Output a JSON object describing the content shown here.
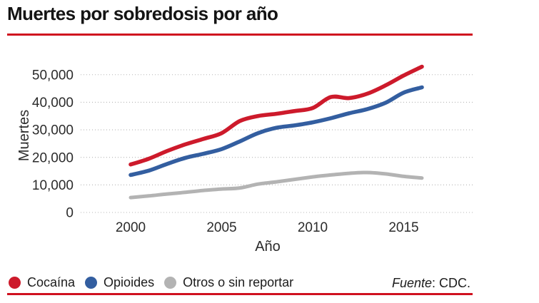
{
  "header": {
    "title": "Muertes por sobredosis por año"
  },
  "footer": {
    "source_prefix": "Fuente",
    "source_suffix": ": CDC."
  },
  "colors": {
    "accent_rule": "#d0111f",
    "cocaina": "#cd1a2b",
    "opioides": "#335ea0",
    "otros": "#b3b3b3",
    "gridline": "#b5b5b5",
    "text": "#2b2b2b"
  },
  "legend": [
    {
      "label": "Cocaína",
      "color": "#cd1a2b"
    },
    {
      "label": "Opioides",
      "color": "#335ea0"
    },
    {
      "label": "Otros o sin reportar",
      "color": "#b3b3b3"
    }
  ],
  "chart_data": {
    "type": "line",
    "title": "Muertes por sobredosis por año",
    "xlabel": "Año",
    "ylabel": "Muertes",
    "grid": "horizontal-dotted",
    "legend_position": "bottom-left",
    "x": [
      2000,
      2001,
      2002,
      2003,
      2004,
      2005,
      2006,
      2007,
      2008,
      2009,
      2010,
      2011,
      2012,
      2013,
      2014,
      2015,
      2016
    ],
    "xticks": [
      2000,
      2005,
      2010,
      2015
    ],
    "xticklabels": [
      "2000",
      "2005",
      "2010",
      "2015"
    ],
    "yticks": [
      0,
      10000,
      20000,
      30000,
      40000,
      50000
    ],
    "yticklabels": [
      "0",
      "10,000",
      "20,000",
      "30,000",
      "40,000",
      "50,000"
    ],
    "ylim": [
      0,
      55000
    ],
    "series": [
      {
        "name": "Cocaína",
        "color": "#cd1a2b",
        "values": [
          17400,
          19500,
          22300,
          24700,
          26700,
          28800,
          33200,
          35000,
          35800,
          36800,
          37900,
          41900,
          41500,
          43100,
          46100,
          49700,
          52900
        ]
      },
      {
        "name": "Opioides",
        "color": "#335ea0",
        "values": [
          13600,
          15200,
          17600,
          19800,
          21300,
          23000,
          25800,
          28800,
          30700,
          31600,
          32700,
          34200,
          36000,
          37500,
          39800,
          43500,
          45400
        ]
      },
      {
        "name": "Otros o sin reportar",
        "color": "#b3b3b3",
        "values": [
          5400,
          6000,
          6700,
          7300,
          8000,
          8500,
          8900,
          10300,
          11100,
          12000,
          12900,
          13600,
          14200,
          14500,
          14000,
          13100,
          12500
        ]
      }
    ]
  }
}
